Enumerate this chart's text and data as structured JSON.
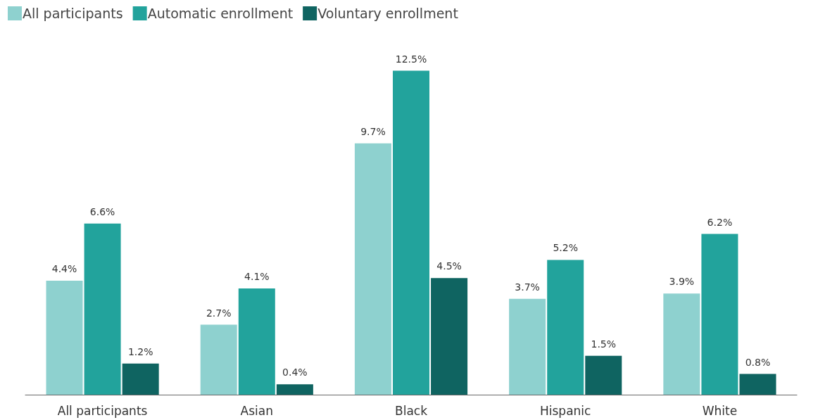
{
  "chart_data": {
    "type": "bar",
    "categories": [
      "All participants",
      "Asian",
      "Black",
      "Hispanic",
      "White"
    ],
    "series": [
      {
        "name": "All participants",
        "color": "#8ed1cf",
        "values": [
          4.4,
          2.7,
          9.7,
          3.7,
          3.9
        ],
        "value_labels": [
          "4.4%",
          "2.7%",
          "9.7%",
          "3.7%",
          "3.9%"
        ]
      },
      {
        "name": "Automatic enrollment",
        "color": "#22a39c",
        "values": [
          6.6,
          4.1,
          12.5,
          5.2,
          6.2
        ],
        "value_labels": [
          "6.6%",
          "4.1%",
          "12.5%",
          "5.2%",
          "6.2%"
        ]
      },
      {
        "name": "Voluntary enrollment",
        "color": "#0f6461",
        "values": [
          1.2,
          0.4,
          4.5,
          1.5,
          0.8
        ],
        "value_labels": [
          "1.2%",
          "0.4%",
          "4.5%",
          "1.5%",
          "0.8%"
        ]
      }
    ],
    "legend": "top left"
  }
}
